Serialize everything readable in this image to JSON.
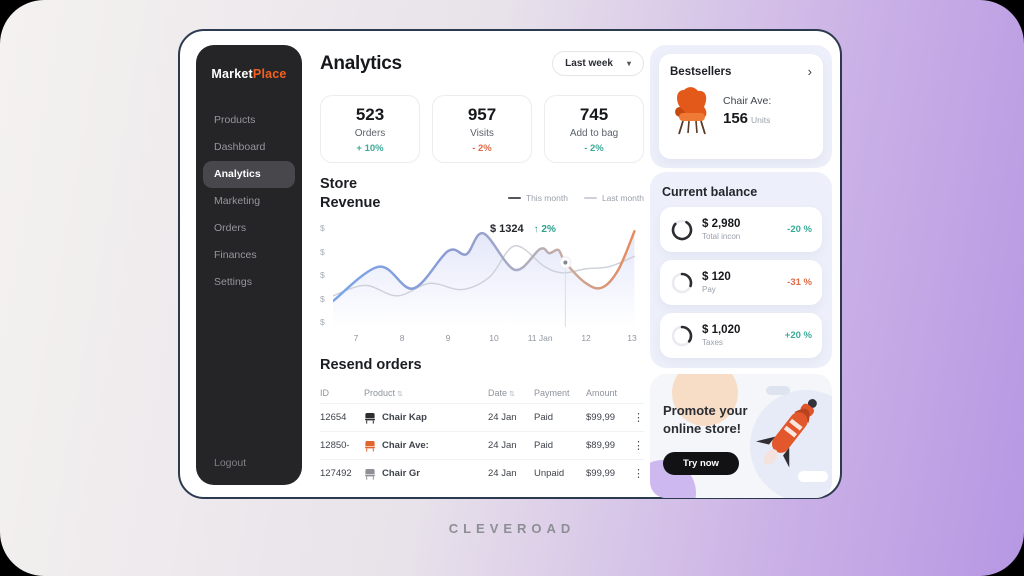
{
  "colors": {
    "accent_teal": "#3bab98",
    "accent_orange": "#df6a47",
    "brand_orange": "#f4611d",
    "sidebar_bg": "#252528",
    "frame_border": "#2c3a4f",
    "panel_lavender": "#edf0fa",
    "line_blue": "#79a4ec",
    "line_orange": "#e8875a",
    "line_gray": "#ced1da",
    "background_gradient": [
      "#f4f2f0",
      "#b697e3"
    ]
  },
  "brand": {
    "name_primary": "Market",
    "name_secondary": "Place"
  },
  "sidebar": {
    "items": [
      {
        "label": "Products"
      },
      {
        "label": "Dashboard"
      },
      {
        "label": "Analytics",
        "active": true
      },
      {
        "label": "Marketing"
      },
      {
        "label": "Orders"
      },
      {
        "label": "Finances"
      },
      {
        "label": "Settings"
      }
    ],
    "logout_label": "Logout"
  },
  "header": {
    "title": "Analytics",
    "range_selector_value": "Last week",
    "chevron": "▾"
  },
  "stats": {
    "cards": [
      {
        "value": "523",
        "label": "Orders",
        "delta": "+ 10%",
        "tone": "teal"
      },
      {
        "value": "957",
        "label": "Visits",
        "delta": "- 2%",
        "tone": "orange"
      },
      {
        "value": "745",
        "label": "Add to bag",
        "delta": "- 2%",
        "tone": "teal"
      }
    ]
  },
  "revenue": {
    "title_line1": "Store",
    "title_line2": "Revenue"
  },
  "chart_data": {
    "type": "line",
    "title": "Store Revenue",
    "legend": [
      "This month",
      "Last month"
    ],
    "legend_position": "top-right",
    "x_ticks": [
      "7",
      "8",
      "9",
      "10",
      "11 Jan",
      "12",
      "13"
    ],
    "x_tick_days": [
      7,
      8,
      9,
      10,
      11,
      12,
      13
    ],
    "y_ticks": [
      "$",
      "$",
      "$",
      "$",
      "$"
    ],
    "x_range": [
      6.5,
      13.15
    ],
    "y_range": [
      0,
      100
    ],
    "grid": false,
    "series": [
      {
        "name": "This month",
        "points": [
          [
            6.5,
            25
          ],
          [
            7.5,
            58
          ],
          [
            8.24,
            37
          ],
          [
            9.0,
            73
          ],
          [
            9.4,
            70
          ],
          [
            9.77,
            90
          ],
          [
            10.45,
            55
          ],
          [
            11.0,
            75
          ],
          [
            11.2,
            71
          ],
          [
            11.4,
            74
          ],
          [
            11.55,
            62
          ],
          [
            12.0,
            42
          ],
          [
            12.35,
            38
          ],
          [
            12.7,
            55
          ],
          [
            13.05,
            92
          ]
        ]
      },
      {
        "name": "Last month",
        "points": [
          [
            6.5,
            30
          ],
          [
            7.2,
            40
          ],
          [
            7.9,
            30
          ],
          [
            8.6,
            42
          ],
          [
            9.3,
            36
          ],
          [
            9.9,
            48
          ],
          [
            10.45,
            78
          ],
          [
            11.1,
            58
          ],
          [
            11.5,
            52
          ],
          [
            12.0,
            56
          ],
          [
            12.5,
            58
          ],
          [
            13.05,
            68
          ]
        ]
      }
    ],
    "tooltip": {
      "label": "$ 1324",
      "delta": "↑ 2%",
      "day": 11.55,
      "value": 62
    }
  },
  "orders": {
    "title": "Resend orders",
    "columns": {
      "id": "ID",
      "product": "Product",
      "date": "Date",
      "payment": "Payment",
      "amount": "Amount"
    },
    "sort_icon": "⇅",
    "menu_icon": "⋮",
    "rows": [
      {
        "id": "12654",
        "product": "Chair Kap",
        "date": "24 Jan",
        "payment": "Paid",
        "amount": "$99,99",
        "icon": "chair-icon-dark"
      },
      {
        "id": "12850-",
        "product": "Chair Ave:",
        "date": "24 Jan",
        "payment": "Paid",
        "amount": "$89,99",
        "icon": "chair-icon-orange"
      },
      {
        "id": "127492",
        "product": "Chair Gr",
        "date": "24 Jan",
        "payment": "Unpaid",
        "amount": "$99,99",
        "icon": "chair-icon-gray"
      }
    ]
  },
  "bestsellers": {
    "title": "Bestsellers",
    "chevron": "›",
    "product_name": "Chair Ave:",
    "units_value": "156",
    "units_label": "Units"
  },
  "balance": {
    "title": "Current balance",
    "items": [
      {
        "amount": "$ 2,980",
        "label": "Total incon",
        "delta": "-20 %",
        "tone": "teal",
        "progress": 0.78
      },
      {
        "amount": "$ 120",
        "label": "Pay",
        "delta": "-31 %",
        "tone": "orange",
        "progress": 0.3
      },
      {
        "amount": "$ 1,020",
        "label": "Taxes",
        "delta": "+20 %",
        "tone": "teal",
        "progress": 0.35
      }
    ]
  },
  "promo": {
    "line1": "Promote your",
    "line2": "online store!",
    "button_label": "Try now"
  },
  "footer": {
    "brand": "CLEVEROAD"
  }
}
